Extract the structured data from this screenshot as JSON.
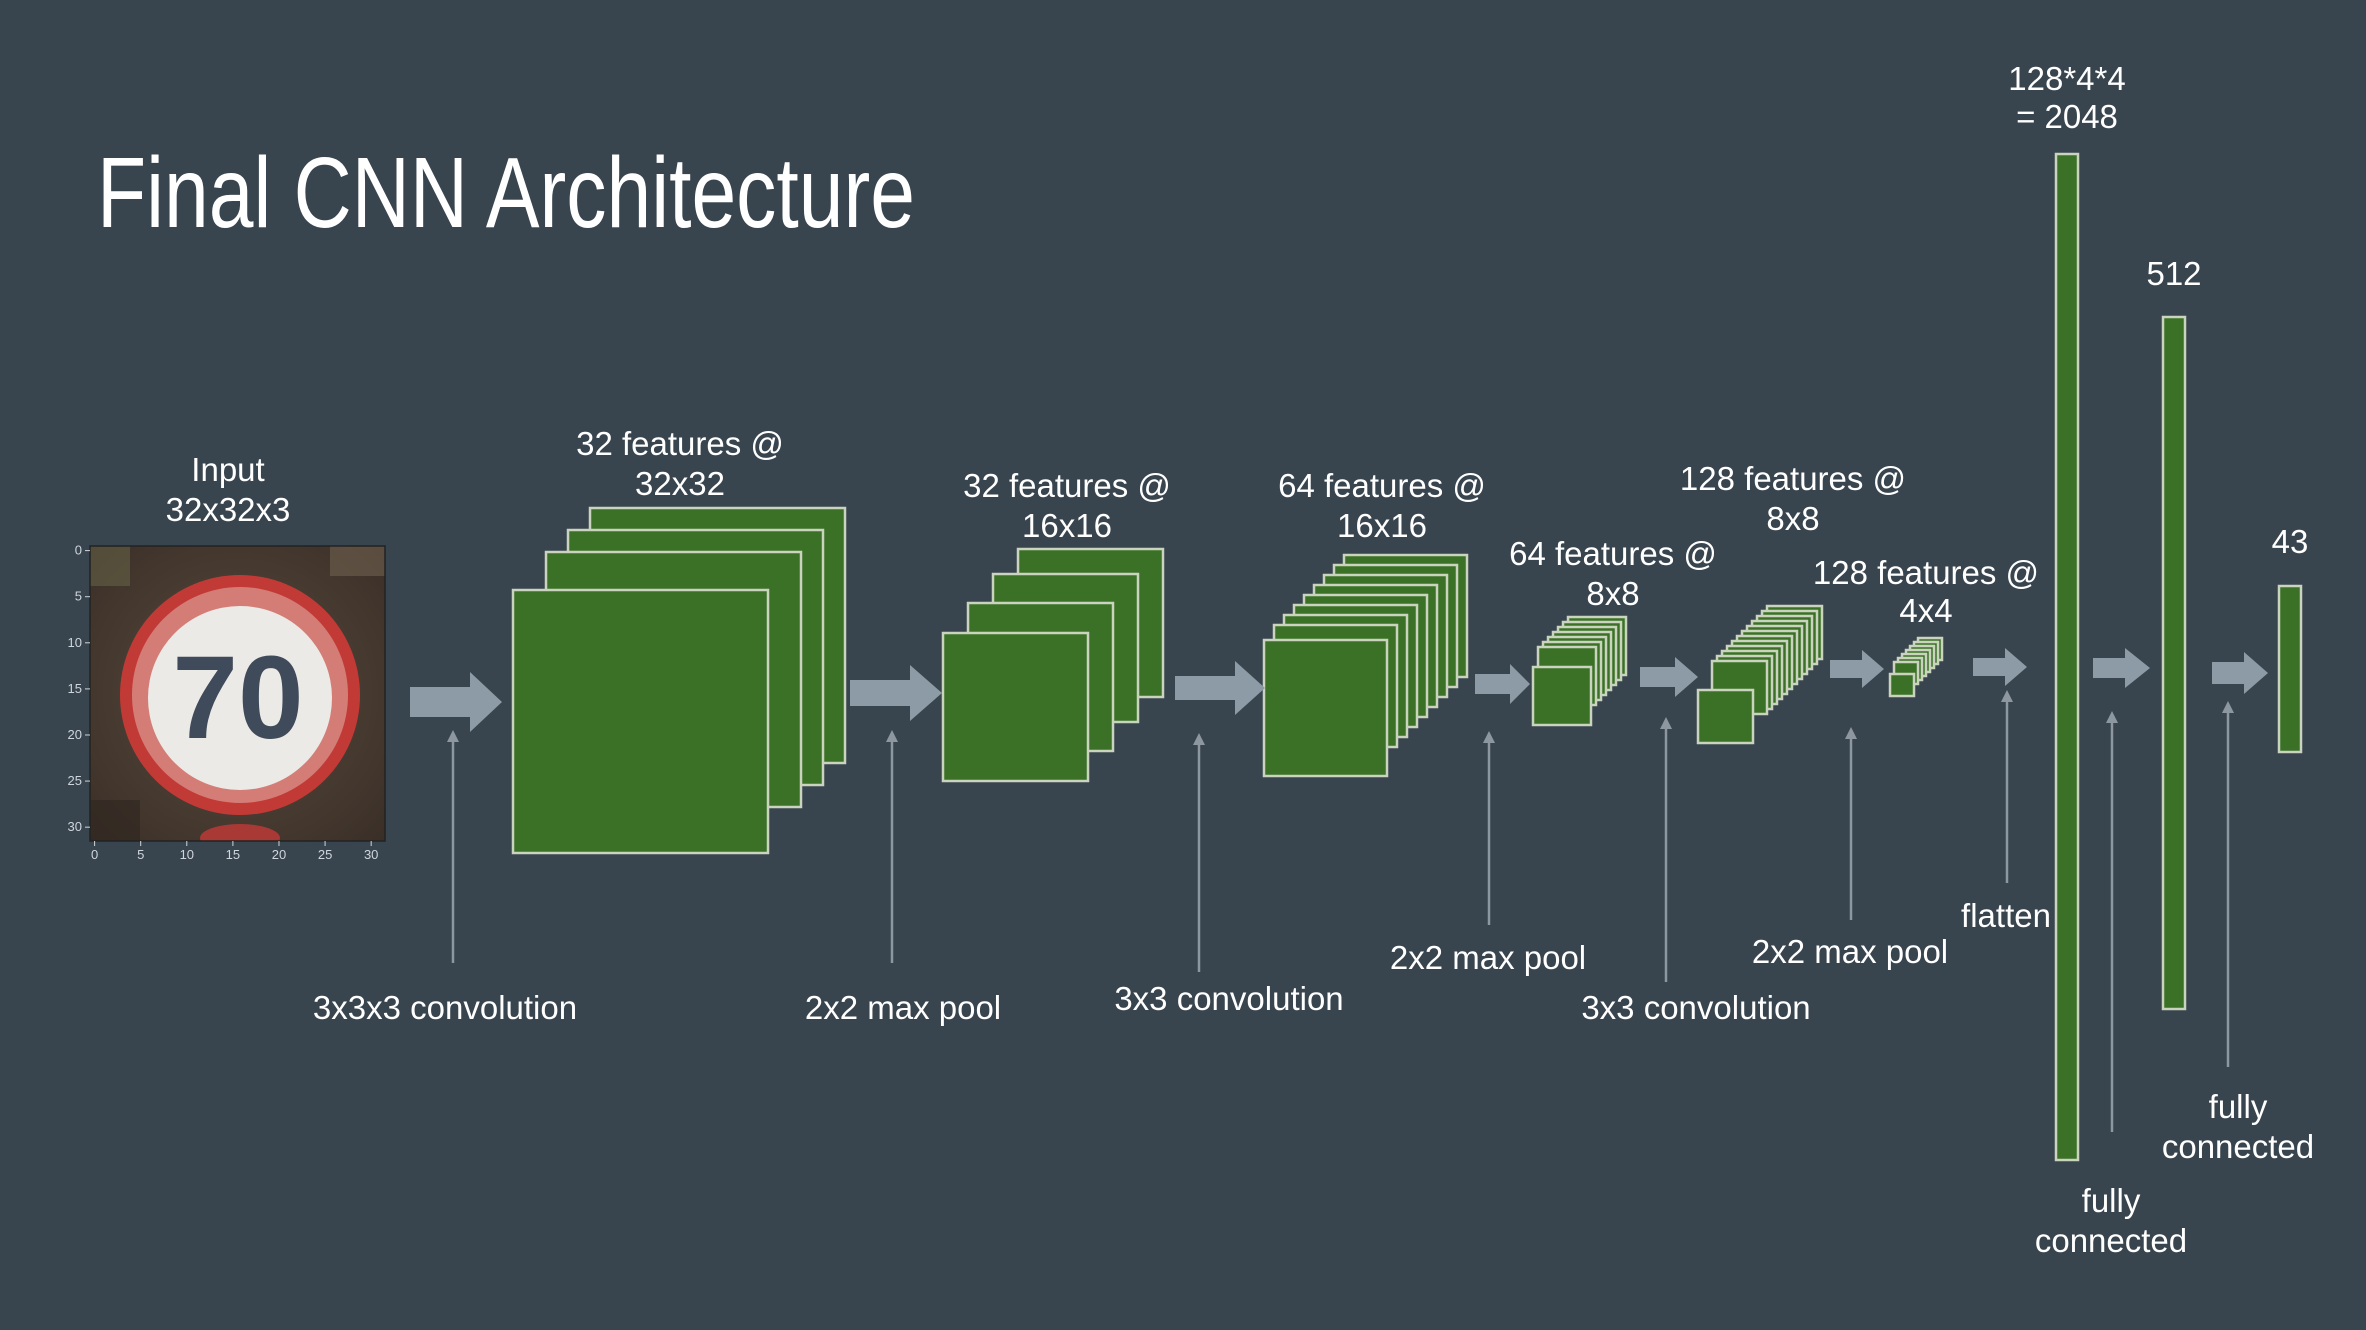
{
  "title": "Final CNN Architecture",
  "input_image": {
    "label_line1": "Input",
    "label_line2": "32x32x3",
    "content": "70",
    "y_ticks": [
      "0",
      "5",
      "10",
      "15",
      "20",
      "25",
      "30"
    ],
    "x_ticks": [
      "0",
      "5",
      "10",
      "15",
      "20",
      "25",
      "30"
    ],
    "colors": {
      "ring": "#c23a36",
      "face": "#eceae6",
      "digits": "#3f4a5a",
      "background": "#4b3d32"
    }
  },
  "feature_maps": [
    {
      "line1": "32 features @",
      "line2": "32x32"
    },
    {
      "line1": "32 features @",
      "line2": "16x16"
    },
    {
      "line1": "64 features @",
      "line2": "16x16"
    },
    {
      "line1": "64 features @",
      "line2": "8x8"
    },
    {
      "line1": "128 features @",
      "line2": "8x8"
    },
    {
      "line1": "128 features @",
      "line2": "4x4"
    }
  ],
  "dense_layers": [
    {
      "line1": "128*4*4",
      "line2": "= 2048"
    },
    {
      "line1": "512"
    },
    {
      "line1": "43"
    }
  ],
  "operations": [
    {
      "line1": "3x3x3 convolution"
    },
    {
      "line1": "2x2 max pool"
    },
    {
      "line1": "3x3 convolution"
    },
    {
      "line1": "2x2 max pool"
    },
    {
      "line1": "3x3 convolution"
    },
    {
      "line1": "2x2 max pool"
    },
    {
      "line1": "flatten"
    },
    {
      "line1": "fully",
      "line2": "connected"
    },
    {
      "line1": "fully",
      "line2": "connected"
    }
  ],
  "colors": {
    "background": "#38444e",
    "layer_fill": "#3a7126",
    "layer_stroke": "#c9d3bd",
    "flow_arrow": "#8c9ba6",
    "pointer": "#8c979f",
    "text": "#ffffff"
  }
}
